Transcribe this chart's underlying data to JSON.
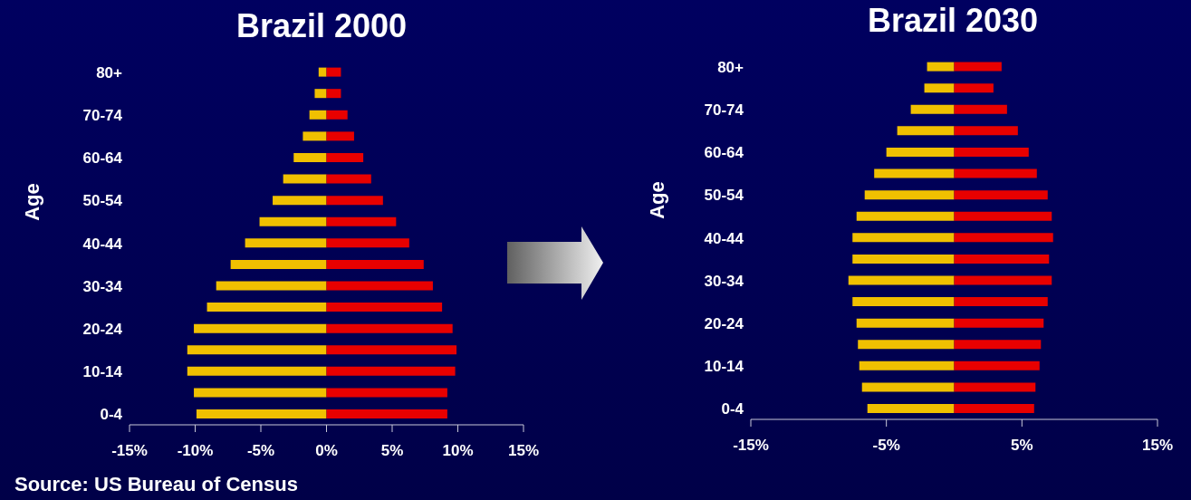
{
  "chart_data": [
    {
      "type": "bar",
      "title": "Brazil 2000",
      "ylabel": "Age",
      "orientation": "horizontal",
      "stacked": true,
      "categories": [
        "80+",
        null,
        "70-74",
        null,
        "60-64",
        null,
        "50-54",
        null,
        "40-44",
        null,
        "30-34",
        null,
        "20-24",
        null,
        "10-14",
        null,
        "0-4"
      ],
      "series": [
        {
          "color": "#f0c000",
          "values": [
            -0.6,
            -0.9,
            -1.3,
            -1.8,
            -2.5,
            -3.3,
            -4.1,
            -5.1,
            -6.2,
            -7.3,
            -8.4,
            -9.1,
            -10.1,
            -10.6,
            -10.6,
            -10.1,
            -9.9
          ]
        },
        {
          "color": "#e80000",
          "values": [
            1.1,
            1.1,
            1.6,
            2.1,
            2.8,
            3.4,
            4.3,
            5.3,
            6.3,
            7.4,
            8.1,
            8.8,
            9.6,
            9.9,
            9.8,
            9.2,
            9.2
          ]
        }
      ],
      "xlim": [
        -15,
        15
      ],
      "xticks": [
        {
          "value": -15,
          "label": "-15%"
        },
        {
          "value": -10,
          "label": "-10%"
        },
        {
          "value": -5,
          "label": "-5%"
        },
        {
          "value": 0,
          "label": "0%"
        },
        {
          "value": 5,
          "label": "5%"
        },
        {
          "value": 10,
          "label": "10%"
        },
        {
          "value": 15,
          "label": "15%"
        }
      ],
      "annotations": [
        "Source: US Bureau of Census"
      ]
    },
    {
      "type": "bar",
      "title": "Brazil 2030",
      "ylabel": "Age",
      "orientation": "horizontal",
      "stacked": true,
      "categories": [
        "80+",
        null,
        "70-74",
        null,
        "60-64",
        null,
        "50-54",
        null,
        "40-44",
        null,
        "30-34",
        null,
        "20-24",
        null,
        "10-14",
        null,
        "0-4"
      ],
      "series": [
        {
          "color": "#f0c000",
          "values": [
            -2.0,
            -2.2,
            -3.2,
            -4.2,
            -5.0,
            -5.9,
            -6.6,
            -7.2,
            -7.5,
            -7.5,
            -7.8,
            -7.5,
            -7.2,
            -7.1,
            -7.0,
            -6.8,
            -6.4
          ]
        },
        {
          "color": "#e80000",
          "values": [
            3.5,
            2.9,
            3.9,
            4.7,
            5.5,
            6.1,
            6.9,
            7.2,
            7.3,
            7.0,
            7.2,
            6.9,
            6.6,
            6.4,
            6.3,
            6.0,
            5.9
          ]
        }
      ],
      "xlim": [
        -15,
        15
      ],
      "xticks": [
        {
          "value": -15,
          "label": "-15%"
        },
        {
          "value": -5,
          "label": "-5%"
        },
        {
          "value": 5,
          "label": "5%"
        },
        {
          "value": 15,
          "label": "15%"
        }
      ]
    }
  ]
}
